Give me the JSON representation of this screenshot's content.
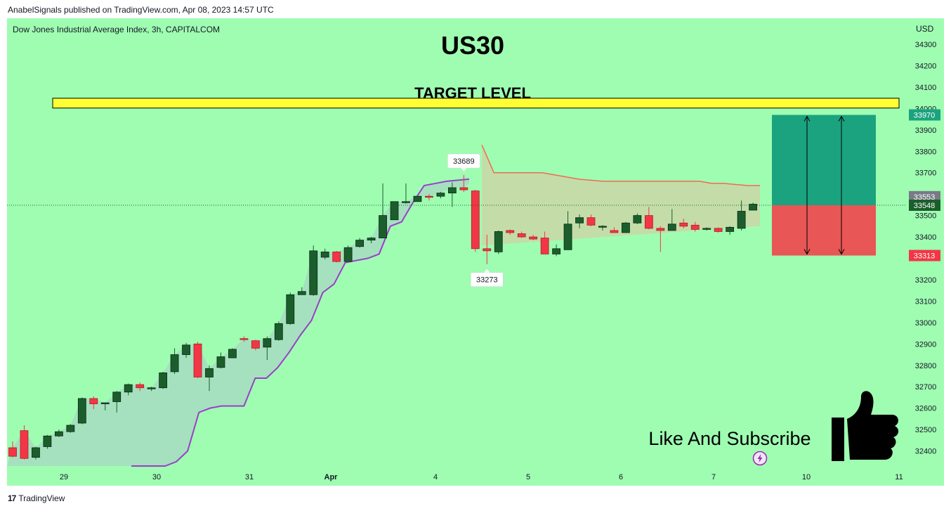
{
  "header": {
    "publisher_text": "AnabelSignals published on TradingView.com, Apr 08, 2023 14:57 UTC"
  },
  "footer": {
    "brand": "TradingView",
    "logo_glyph": "17"
  },
  "colors": {
    "background": "#9ffdb2",
    "bull": "#1b5e2c",
    "bear": "#f23645",
    "target_band": "#ffff33",
    "tp_zone": "#1aa37e",
    "sl_zone": "#e85656",
    "cloud_lower_line": "#9b3ec9",
    "cloud_upper_line": "#f06a55"
  },
  "chart_data": {
    "type": "candlestick",
    "symbol_line": "Dow Jones Industrial Average Index, 3h, CAPITALCOM",
    "title": "US30",
    "currency": "USD",
    "y_ticks": [
      34300,
      34200,
      34100,
      34000,
      33900,
      33800,
      33700,
      33600,
      33500,
      33400,
      33300,
      33200,
      33100,
      33000,
      32900,
      32800,
      32700,
      32600,
      32500,
      32400
    ],
    "x_ticks": [
      "29",
      "30",
      "31",
      "Apr",
      "4",
      "5",
      "6",
      "7",
      "10",
      "11"
    ],
    "target_level": {
      "label": "TARGET LEVEL",
      "price": 34025
    },
    "position": {
      "take_profit": "33970",
      "last_close": "33553",
      "entry": "33548",
      "stop_loss": "33313",
      "take_profit_value": 33970,
      "entry_value": 33548,
      "stop_loss_value": 33313
    },
    "high_marker": {
      "label": "33689",
      "value": 33689
    },
    "low_marker": {
      "label": "33273",
      "value": 33273
    },
    "candles": [
      {
        "o": 32415,
        "h": 32445,
        "l": 32370,
        "c": 32375
      },
      {
        "o": 32495,
        "h": 32520,
        "l": 32360,
        "c": 32365
      },
      {
        "o": 32370,
        "h": 32420,
        "l": 32360,
        "c": 32415
      },
      {
        "o": 32420,
        "h": 32475,
        "l": 32410,
        "c": 32470
      },
      {
        "o": 32470,
        "h": 32500,
        "l": 32465,
        "c": 32490
      },
      {
        "o": 32490,
        "h": 32525,
        "l": 32485,
        "c": 32520
      },
      {
        "o": 32530,
        "h": 32650,
        "l": 32525,
        "c": 32645
      },
      {
        "o": 32645,
        "h": 32655,
        "l": 32595,
        "c": 32620
      },
      {
        "o": 32620,
        "h": 32625,
        "l": 32590,
        "c": 32625
      },
      {
        "o": 32630,
        "h": 32680,
        "l": 32580,
        "c": 32675
      },
      {
        "o": 32675,
        "h": 32715,
        "l": 32660,
        "c": 32710
      },
      {
        "o": 32710,
        "h": 32720,
        "l": 32680,
        "c": 32695
      },
      {
        "o": 32690,
        "h": 32700,
        "l": 32680,
        "c": 32695
      },
      {
        "o": 32695,
        "h": 32770,
        "l": 32690,
        "c": 32765
      },
      {
        "o": 32770,
        "h": 32880,
        "l": 32760,
        "c": 32850
      },
      {
        "o": 32850,
        "h": 32905,
        "l": 32835,
        "c": 32895
      },
      {
        "o": 32900,
        "h": 32910,
        "l": 32740,
        "c": 32745
      },
      {
        "o": 32745,
        "h": 32800,
        "l": 32680,
        "c": 32785
      },
      {
        "o": 32790,
        "h": 32860,
        "l": 32785,
        "c": 32840
      },
      {
        "o": 32835,
        "h": 32880,
        "l": 32835,
        "c": 32875
      },
      {
        "o": 32925,
        "h": 32935,
        "l": 32910,
        "c": 32920
      },
      {
        "o": 32915,
        "h": 32920,
        "l": 32870,
        "c": 32880
      },
      {
        "o": 32885,
        "h": 32935,
        "l": 32825,
        "c": 32925
      },
      {
        "o": 32920,
        "h": 33005,
        "l": 32915,
        "c": 32995
      },
      {
        "o": 32995,
        "h": 33140,
        "l": 32990,
        "c": 33130
      },
      {
        "o": 33130,
        "h": 33165,
        "l": 33130,
        "c": 33145
      },
      {
        "o": 33130,
        "h": 33360,
        "l": 33125,
        "c": 33335
      },
      {
        "o": 33305,
        "h": 33345,
        "l": 33295,
        "c": 33330
      },
      {
        "o": 33330,
        "h": 33335,
        "l": 33280,
        "c": 33285
      },
      {
        "o": 33285,
        "h": 33360,
        "l": 33285,
        "c": 33350
      },
      {
        "o": 33355,
        "h": 33395,
        "l": 33350,
        "c": 33385
      },
      {
        "o": 33385,
        "h": 33400,
        "l": 33370,
        "c": 33395
      },
      {
        "o": 33395,
        "h": 33650,
        "l": 33395,
        "c": 33500
      },
      {
        "o": 33480,
        "h": 33560,
        "l": 33480,
        "c": 33565
      },
      {
        "o": 33560,
        "h": 33650,
        "l": 33555,
        "c": 33565
      },
      {
        "o": 33565,
        "h": 33590,
        "l": 33565,
        "c": 33590
      },
      {
        "o": 33590,
        "h": 33600,
        "l": 33570,
        "c": 33585
      },
      {
        "o": 33590,
        "h": 33610,
        "l": 33580,
        "c": 33605
      },
      {
        "o": 33605,
        "h": 33655,
        "l": 33540,
        "c": 33630
      },
      {
        "o": 33630,
        "h": 33689,
        "l": 33610,
        "c": 33620
      },
      {
        "o": 33615,
        "h": 33620,
        "l": 33330,
        "c": 33345
      },
      {
        "o": 33345,
        "h": 33410,
        "l": 33273,
        "c": 33335
      },
      {
        "o": 33330,
        "h": 33430,
        "l": 33320,
        "c": 33425
      },
      {
        "o": 33430,
        "h": 33435,
        "l": 33410,
        "c": 33420
      },
      {
        "o": 33415,
        "h": 33425,
        "l": 33395,
        "c": 33400
      },
      {
        "o": 33400,
        "h": 33410,
        "l": 33385,
        "c": 33390
      },
      {
        "o": 33395,
        "h": 33425,
        "l": 33320,
        "c": 33320
      },
      {
        "o": 33320,
        "h": 33365,
        "l": 33310,
        "c": 33345
      },
      {
        "o": 33340,
        "h": 33520,
        "l": 33340,
        "c": 33460
      },
      {
        "o": 33465,
        "h": 33505,
        "l": 33440,
        "c": 33490
      },
      {
        "o": 33490,
        "h": 33505,
        "l": 33450,
        "c": 33455
      },
      {
        "o": 33445,
        "h": 33455,
        "l": 33430,
        "c": 33450
      },
      {
        "o": 33430,
        "h": 33445,
        "l": 33420,
        "c": 33420
      },
      {
        "o": 33420,
        "h": 33470,
        "l": 33420,
        "c": 33465
      },
      {
        "o": 33465,
        "h": 33510,
        "l": 33460,
        "c": 33500
      },
      {
        "o": 33500,
        "h": 33540,
        "l": 33435,
        "c": 33440
      },
      {
        "o": 33440,
        "h": 33450,
        "l": 33330,
        "c": 33430
      },
      {
        "o": 33430,
        "h": 33530,
        "l": 33430,
        "c": 33460
      },
      {
        "o": 33465,
        "h": 33485,
        "l": 33440,
        "c": 33450
      },
      {
        "o": 33455,
        "h": 33470,
        "l": 33425,
        "c": 33435
      },
      {
        "o": 33435,
        "h": 33445,
        "l": 33430,
        "c": 33440
      },
      {
        "o": 33440,
        "h": 33445,
        "l": 33420,
        "c": 33425
      },
      {
        "o": 33425,
        "h": 33450,
        "l": 33410,
        "c": 33445
      },
      {
        "o": 33440,
        "h": 33570,
        "l": 33430,
        "c": 33520
      },
      {
        "o": 33525,
        "h": 33560,
        "l": 33525,
        "c": 33553
      }
    ],
    "cloud_lower": [
      32240,
      32260,
      32275,
      32310,
      32350,
      32400,
      32580,
      32600,
      32610,
      32610,
      32610,
      32740,
      32740,
      32790,
      32860,
      32940,
      33010,
      33140,
      33180,
      33280,
      33290,
      33300,
      33320,
      33450,
      33470,
      33560,
      33640,
      33650,
      33660,
      33665,
      33670
    ],
    "cloud_upper": [
      33830,
      33700,
      33700,
      33700,
      33700,
      33700,
      33690,
      33680,
      33670,
      33665,
      33660,
      33660,
      33660,
      33660,
      33660,
      33660,
      33660,
      33660,
      33660,
      33650,
      33650,
      33645,
      33640,
      33640
    ],
    "overlay_text": "Like And Subscribe"
  }
}
